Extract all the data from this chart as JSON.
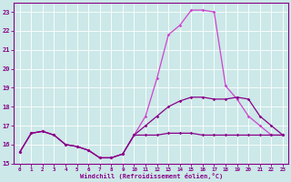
{
  "xlabel": "Windchill (Refroidissement éolien,°C)",
  "xlim": [
    -0.5,
    23.5
  ],
  "ylim": [
    15,
    23.5
  ],
  "yticks": [
    15,
    16,
    17,
    18,
    19,
    20,
    21,
    22,
    23
  ],
  "xticks": [
    0,
    1,
    2,
    3,
    4,
    5,
    6,
    7,
    8,
    9,
    10,
    11,
    12,
    13,
    14,
    15,
    16,
    17,
    18,
    19,
    20,
    21,
    22,
    23
  ],
  "background_color": "#cce8e8",
  "grid_color": "#b0d8d8",
  "line_color_dark": "#880088",
  "line_color_bright": "#cc44cc",
  "y_top": [
    15.6,
    16.6,
    16.7,
    16.5,
    16.0,
    15.9,
    15.7,
    15.3,
    15.3,
    15.5,
    16.5,
    17.5,
    19.5,
    21.8,
    22.3,
    23.1,
    23.1,
    23.0,
    19.1,
    18.4,
    17.5,
    17.0,
    16.5,
    16.5
  ],
  "y_mid": [
    15.6,
    16.6,
    16.7,
    16.5,
    16.0,
    15.9,
    15.7,
    15.3,
    15.3,
    15.5,
    16.5,
    17.0,
    17.5,
    18.0,
    18.3,
    18.5,
    18.5,
    18.4,
    18.4,
    18.5,
    18.4,
    17.5,
    17.0,
    16.5
  ],
  "y_bot": [
    15.6,
    16.6,
    16.7,
    16.5,
    16.0,
    15.9,
    15.7,
    15.3,
    15.3,
    15.5,
    16.5,
    16.5,
    16.5,
    16.6,
    16.6,
    16.6,
    16.5,
    16.5,
    16.5,
    16.5,
    16.5,
    16.5,
    16.5,
    16.5
  ]
}
